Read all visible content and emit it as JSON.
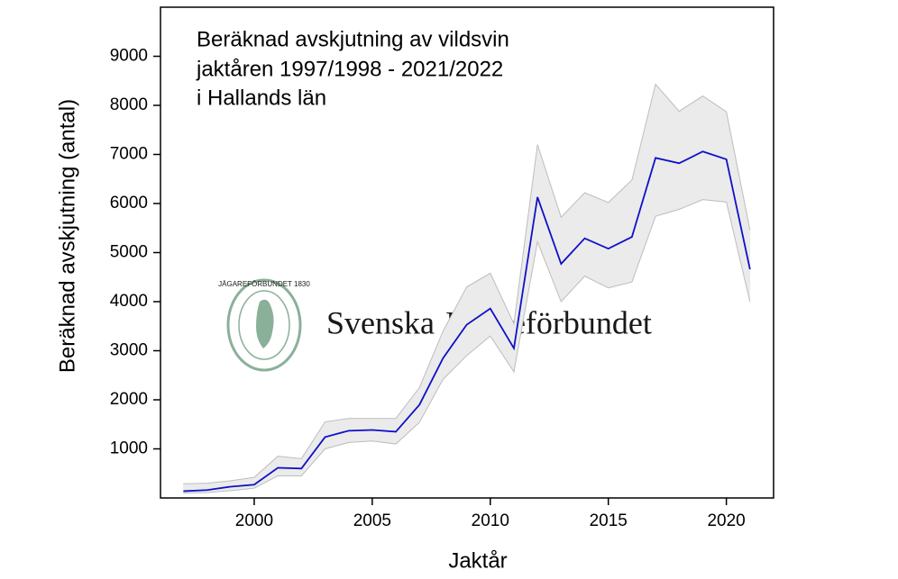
{
  "chart_data": {
    "type": "line",
    "title": [
      "Beräknad avskjutning av vildsvin",
      "jaktåren 1997/1998 - 2021/2022",
      "i Hallands län"
    ],
    "x_label": "Jaktår",
    "y_label": "Beräknad avskjutning (antal)",
    "x": [
      1997,
      1998,
      1999,
      2000,
      2001,
      2002,
      2003,
      2004,
      2005,
      2006,
      2007,
      2008,
      2009,
      2010,
      2011,
      2012,
      2013,
      2014,
      2015,
      2016,
      2017,
      2018,
      2019,
      2020,
      2021
    ],
    "series": [
      {
        "color": "#1010c8",
        "values": [
          139,
          160,
          230,
          270,
          615,
          600,
          1240,
          1370,
          1385,
          1350,
          1900,
          2850,
          3530,
          3860,
          3050,
          6130,
          4770,
          5290,
          5080,
          5320,
          6930,
          6820,
          7060,
          6900,
          4660
        ],
        "band": {
          "color": "#ebebeb",
          "edge_color": "#bdbdbd",
          "upper": [
            290,
            300,
            350,
            420,
            850,
            800,
            1550,
            1620,
            1620,
            1620,
            2250,
            3400,
            4300,
            4580,
            3550,
            7200,
            5720,
            6220,
            6020,
            6480,
            8430,
            7880,
            8190,
            7870,
            5460
          ],
          "lower": [
            100,
            110,
            150,
            200,
            450,
            450,
            1000,
            1130,
            1160,
            1100,
            1540,
            2420,
            2900,
            3300,
            2570,
            5220,
            4000,
            4520,
            4280,
            4400,
            5740,
            5880,
            6080,
            6030,
            4000
          ]
        }
      }
    ],
    "xlim": [
      1996.03,
      2022
    ],
    "xticks": [
      2000,
      2005,
      2010,
      2015,
      2020
    ],
    "ylim": [
      0,
      10000
    ],
    "yticks": [
      1000,
      2000,
      3000,
      4000,
      5000,
      6000,
      7000,
      8000,
      9000
    ],
    "watermark": {
      "text": "Svenska Jägareförbundet",
      "logo_text": "JÄGAREFÖRBUNDET 1830",
      "color": "#7fa88e"
    }
  }
}
